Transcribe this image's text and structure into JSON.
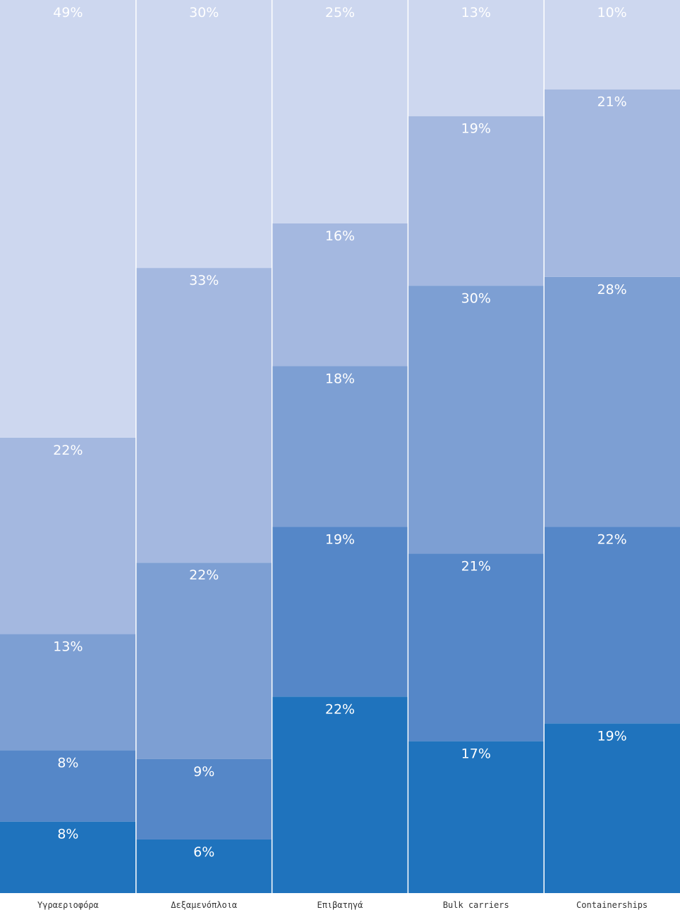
{
  "chart_data": {
    "type": "bar",
    "stacked": true,
    "percent": true,
    "orientation": "vertical",
    "categories": [
      "Υγραεριοφόρα",
      "Δεξαμενόπλοια",
      "Επιβατηγά",
      "Bulk carriers",
      "Containerships"
    ],
    "series": [
      {
        "values": [
          8,
          6,
          22,
          17,
          19
        ],
        "labels": [
          "8%",
          "6%",
          "22%",
          "17%",
          "19%"
        ],
        "color": "#1f73bd"
      },
      {
        "values": [
          8,
          9,
          19,
          21,
          22
        ],
        "labels": [
          "8%",
          "9%",
          "19%",
          "21%",
          "22%"
        ],
        "color": "#5587c8"
      },
      {
        "values": [
          13,
          22,
          18,
          30,
          28
        ],
        "labels": [
          "13%",
          "22%",
          "18%",
          "30%",
          "28%"
        ],
        "color": "#7d9fd3"
      },
      {
        "values": [
          22,
          33,
          16,
          19,
          21
        ],
        "labels": [
          "22%",
          "33%",
          "16%",
          "19%",
          "21%"
        ],
        "color": "#a4b8e0"
      },
      {
        "values": [
          49,
          30,
          25,
          13,
          10
        ],
        "labels": [
          "49%",
          "30%",
          "25%",
          "13%",
          "10%"
        ],
        "color": "#cdd7ef"
      }
    ],
    "ylim": [
      0,
      100
    ],
    "grid": false,
    "legend": "none"
  }
}
